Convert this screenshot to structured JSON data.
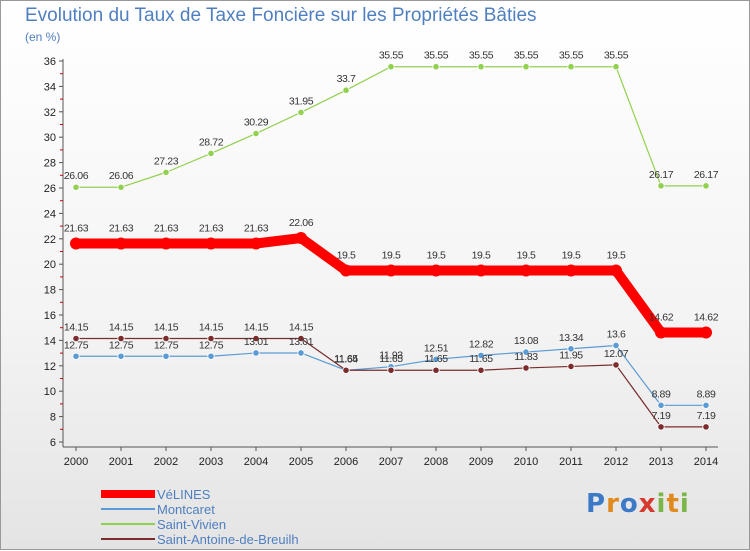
{
  "header": {
    "title": "Evolution du Taux de Taxe Foncière sur les Propriétés Bâties",
    "subtitle": "(en %)"
  },
  "chart_data": {
    "type": "line",
    "title": "Evolution du Taux de Taxe Foncière sur les Propriétés Bâties",
    "ylabel": "(en %)",
    "xlabel": "",
    "categories": [
      "2000",
      "2001",
      "2002",
      "2003",
      "2004",
      "2005",
      "2006",
      "2007",
      "2008",
      "2009",
      "2010",
      "2011",
      "2012",
      "2013",
      "2014"
    ],
    "ylim": [
      6,
      36
    ],
    "yticks": [
      6,
      8,
      10,
      12,
      14,
      16,
      18,
      20,
      22,
      24,
      26,
      28,
      30,
      32,
      34,
      36
    ],
    "grid": false,
    "legend_position": "bottom-left",
    "series": [
      {
        "name": "VéLINES",
        "color": "#ff0000",
        "values": [
          21.63,
          21.63,
          21.63,
          21.63,
          21.63,
          22.06,
          19.5,
          19.5,
          19.5,
          19.5,
          19.5,
          19.5,
          19.5,
          14.62,
          14.62
        ],
        "labels": [
          "21.63",
          "21.63",
          "21.63",
          "21.63",
          "21.63",
          "22.06",
          "19.5",
          "19.5",
          "19.5",
          "19.5",
          "19.5",
          "19.5",
          "19.5",
          "14.62",
          "14.62"
        ]
      },
      {
        "name": "Montcaret",
        "color": "#5b9bd5",
        "values": [
          12.75,
          12.75,
          12.75,
          12.75,
          13.01,
          13.01,
          11.64,
          11.93,
          12.51,
          12.82,
          13.08,
          13.34,
          13.6,
          8.89,
          8.89
        ],
        "labels": [
          "12.75",
          "12.75",
          "12.75",
          "12.75",
          "13.01",
          "13.01",
          "11.64",
          "11.93",
          "12.51",
          "12.82",
          "13.08",
          "13.34",
          "13.6",
          "8.89",
          "8.89"
        ]
      },
      {
        "name": "Saint-Vivien",
        "color": "#92d050",
        "values": [
          26.06,
          26.06,
          27.23,
          28.72,
          30.29,
          31.95,
          33.7,
          35.55,
          35.55,
          35.55,
          35.55,
          35.55,
          35.55,
          26.17,
          26.17
        ],
        "labels": [
          "26.06",
          "26.06",
          "27.23",
          "28.72",
          "30.29",
          "31.95",
          "33.7",
          "35.55",
          "35.55",
          "35.55",
          "35.55",
          "35.55",
          "35.55",
          "26.17",
          "26.17"
        ]
      },
      {
        "name": "Saint-Antoine-de-Breuilh",
        "color": "#7b2c2c",
        "values": [
          14.15,
          14.15,
          14.15,
          14.15,
          14.15,
          14.15,
          11.65,
          11.65,
          11.65,
          11.65,
          11.83,
          11.95,
          12.07,
          7.19,
          7.19
        ],
        "labels": [
          "14.15",
          "14.15",
          "14.15",
          "14.15",
          "14.15",
          "14.15",
          "11.65",
          "11.65",
          "11.65",
          "11.65",
          "11.83",
          "11.95",
          "12.07",
          "7.19",
          "7.19"
        ]
      }
    ]
  },
  "logo": {
    "text": "Proxiti",
    "colors": [
      "#3c7ac8",
      "#e08a1e",
      "#3c7ac8",
      "#d63a2f",
      "#7ab648",
      "#e08a1e",
      "#7ab648"
    ]
  }
}
